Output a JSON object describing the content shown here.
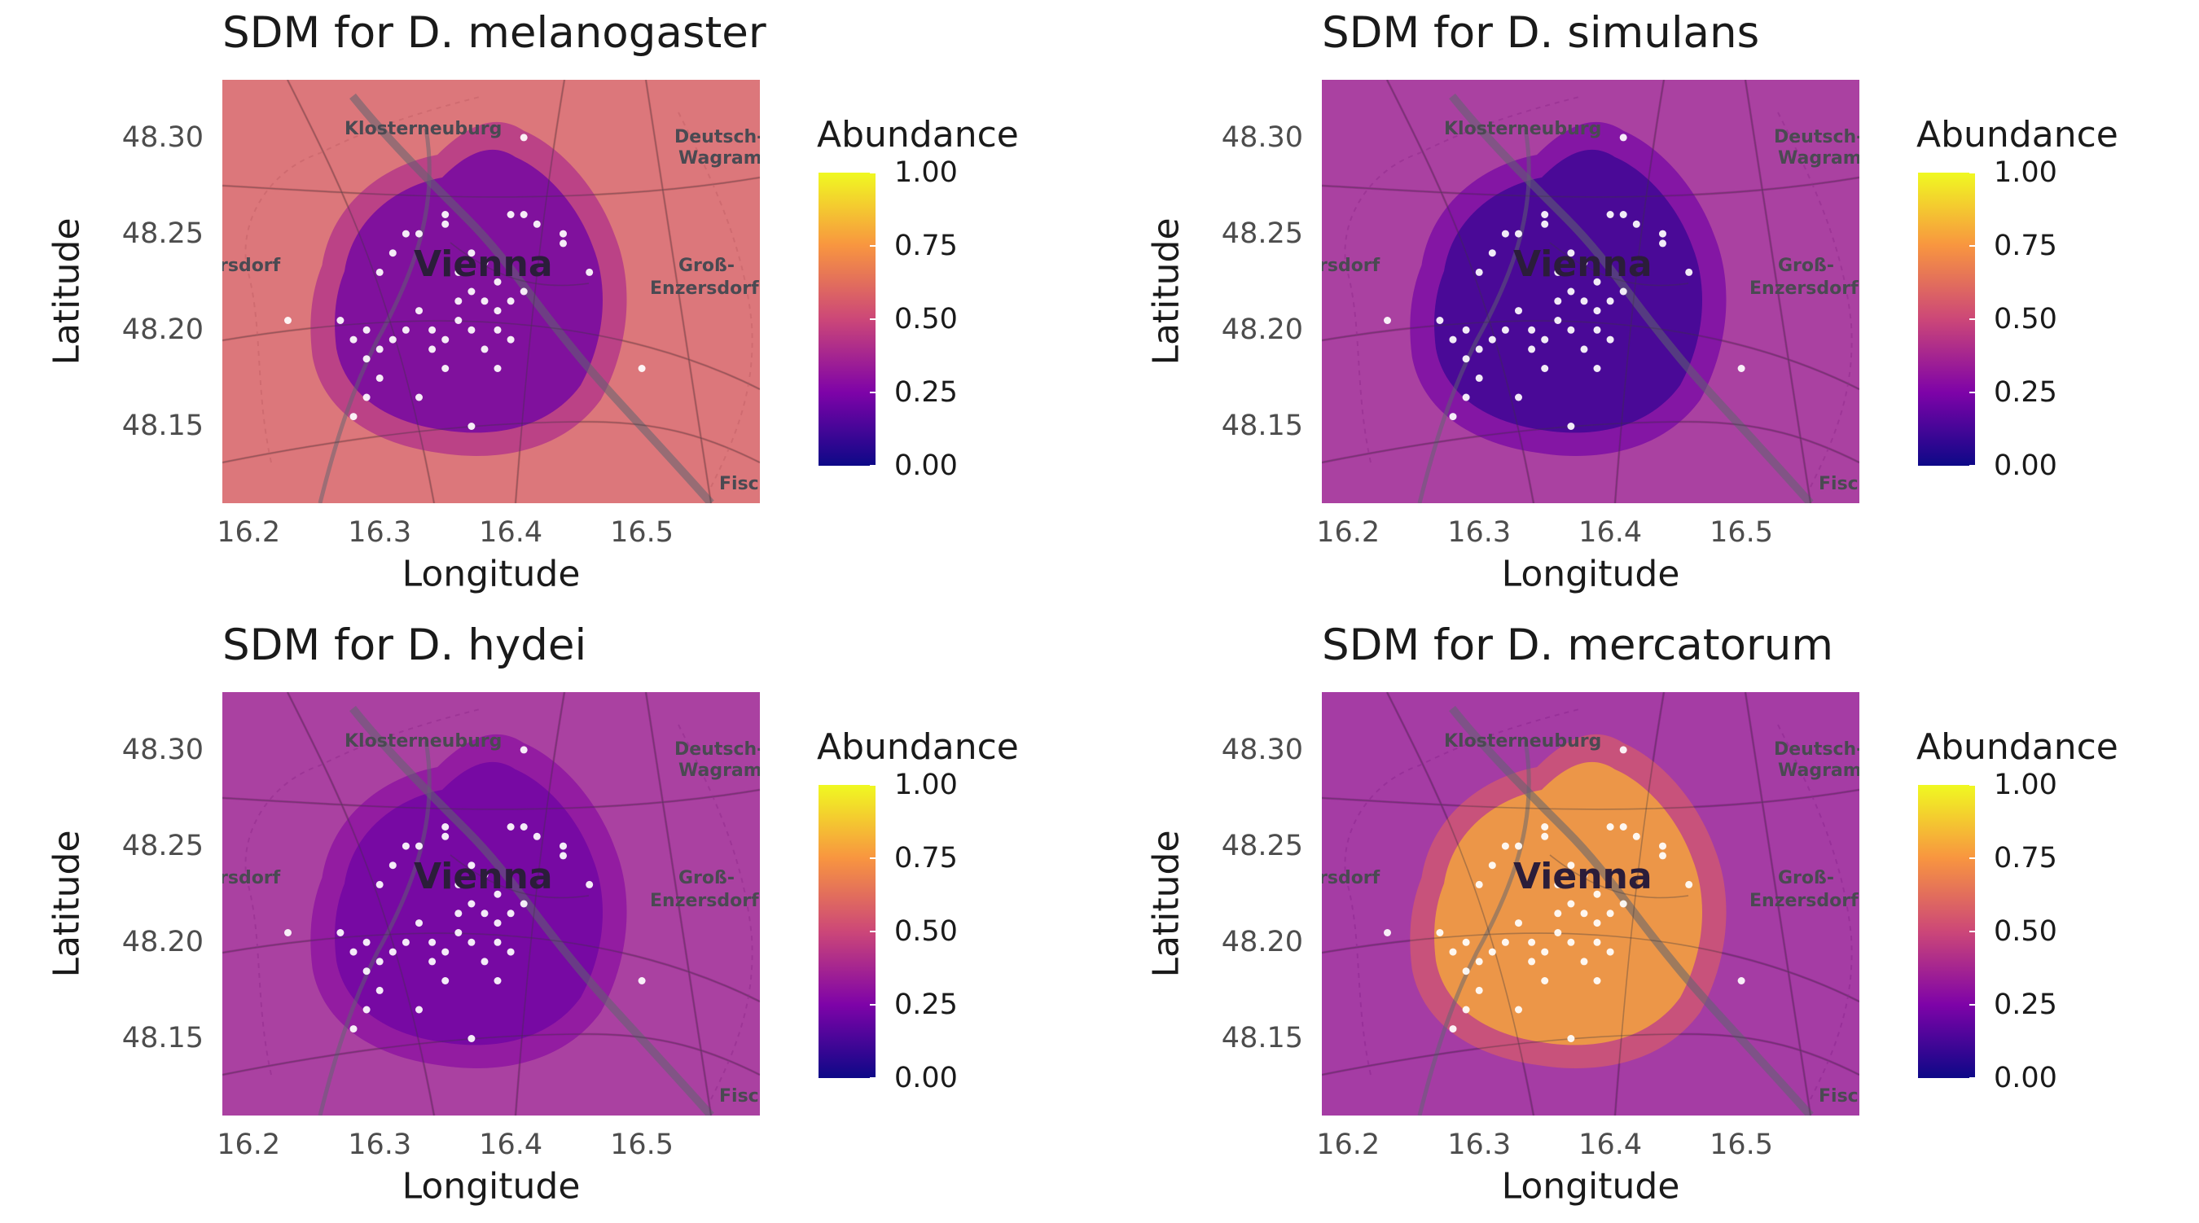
{
  "axes": {
    "x_title": "Longitude",
    "y_title": "Latitude",
    "x_ticks": [
      "16.2",
      "16.3",
      "16.4",
      "16.5"
    ],
    "y_ticks": [
      "48.30",
      "48.25",
      "48.20",
      "48.15"
    ]
  },
  "legend": {
    "title": "Abundance",
    "labels": [
      "1.00",
      "0.75",
      "0.50",
      "0.25",
      "0.00"
    ],
    "colorscale": [
      "#0d0887",
      "#7e03a8",
      "#cc4778",
      "#f89540",
      "#f0f921"
    ]
  },
  "map_labels": {
    "city": "Vienna",
    "klosterneuburg": "Klosterneuburg",
    "deutsch_1": "Deutsch-",
    "deutsch_2": "Wagram",
    "gross_1": "Groß-",
    "gross_2": "Enzersdorf",
    "rsdorf": "rsdorf",
    "fisc": "Fisc"
  },
  "panels": [
    {
      "title": "SDM for D. melanogaster",
      "background_abundance": 0.58,
      "city_abundance": 0.22
    },
    {
      "title": "SDM for D. simulans",
      "background_abundance": 0.35,
      "city_abundance": 0.1
    },
    {
      "title": "SDM for D. hydei",
      "background_abundance": 0.35,
      "city_abundance": 0.22
    },
    {
      "title": "SDM for D. mercatorum",
      "background_abundance": 0.33,
      "city_abundance": 0.8
    }
  ],
  "chart_data": [
    {
      "type": "heatmap",
      "title": "SDM for D. melanogaster",
      "xlabel": "Longitude",
      "ylabel": "Latitude",
      "xlim": [
        16.18,
        16.59
      ],
      "ylim": [
        48.11,
        48.33
      ],
      "legend_title": "Abundance",
      "legend_range": [
        0,
        1
      ],
      "legend_position": "right"
    },
    {
      "type": "heatmap",
      "title": "SDM for D. simulans",
      "xlabel": "Longitude",
      "ylabel": "Latitude",
      "xlim": [
        16.18,
        16.59
      ],
      "ylim": [
        48.11,
        48.33
      ],
      "legend_title": "Abundance",
      "legend_range": [
        0,
        1
      ],
      "legend_position": "right"
    },
    {
      "type": "heatmap",
      "title": "SDM for D. hydei",
      "xlabel": "Longitude",
      "ylabel": "Latitude",
      "xlim": [
        16.18,
        16.59
      ],
      "ylim": [
        48.11,
        48.33
      ],
      "legend_title": "Abundance",
      "legend_range": [
        0,
        1
      ],
      "legend_position": "right"
    },
    {
      "type": "heatmap",
      "title": "SDM for D. mercatorum",
      "xlabel": "Longitude",
      "ylabel": "Latitude",
      "xlim": [
        16.18,
        16.59
      ],
      "ylim": [
        48.11,
        48.33
      ],
      "legend_title": "Abundance",
      "legend_range": [
        0,
        1
      ],
      "legend_position": "right"
    }
  ],
  "sample_points": [
    [
      16.41,
      48.3
    ],
    [
      16.35,
      48.26
    ],
    [
      16.4,
      48.26
    ],
    [
      16.42,
      48.255
    ],
    [
      16.44,
      48.25
    ],
    [
      16.44,
      48.245
    ],
    [
      16.32,
      48.25
    ],
    [
      16.33,
      48.25
    ],
    [
      16.35,
      48.255
    ],
    [
      16.31,
      48.24
    ],
    [
      16.3,
      48.23
    ],
    [
      16.37,
      48.24
    ],
    [
      16.38,
      48.235
    ],
    [
      16.36,
      48.23
    ],
    [
      16.39,
      48.225
    ],
    [
      16.37,
      48.22
    ],
    [
      16.38,
      48.215
    ],
    [
      16.39,
      48.21
    ],
    [
      16.4,
      48.215
    ],
    [
      16.41,
      48.22
    ],
    [
      16.36,
      48.205
    ],
    [
      16.37,
      48.2
    ],
    [
      16.35,
      48.195
    ],
    [
      16.38,
      48.19
    ],
    [
      16.39,
      48.2
    ],
    [
      16.4,
      48.195
    ],
    [
      16.34,
      48.2
    ],
    [
      16.33,
      48.21
    ],
    [
      16.32,
      48.2
    ],
    [
      16.31,
      48.195
    ],
    [
      16.3,
      48.19
    ],
    [
      16.29,
      48.2
    ],
    [
      16.28,
      48.195
    ],
    [
      16.27,
      48.205
    ],
    [
      16.29,
      48.185
    ],
    [
      16.3,
      48.175
    ],
    [
      16.39,
      48.18
    ],
    [
      16.35,
      48.18
    ],
    [
      16.33,
      48.165
    ],
    [
      16.29,
      48.165
    ],
    [
      16.28,
      48.155
    ],
    [
      16.37,
      48.15
    ],
    [
      16.5,
      48.18
    ],
    [
      16.46,
      48.23
    ],
    [
      16.23,
      48.205
    ],
    [
      16.41,
      48.26
    ],
    [
      16.34,
      48.19
    ],
    [
      16.36,
      48.215
    ]
  ]
}
